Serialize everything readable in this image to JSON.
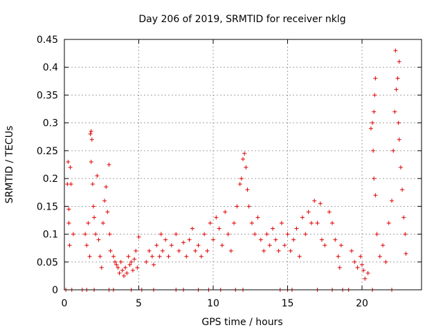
{
  "chart_data": {
    "type": "scatter",
    "title": "Day 206 of 2019, SRMTID for receiver nklg",
    "xlabel": "GPS time / hours",
    "ylabel": "SRMTID / TECUs",
    "xlim": [
      0,
      24
    ],
    "ylim": [
      0,
      0.45
    ],
    "grid": true,
    "marker": "+",
    "color": "#e00000",
    "x_ticks": [
      {
        "value": 0,
        "label": "0"
      },
      {
        "value": 5,
        "label": "5"
      },
      {
        "value": 10,
        "label": "10"
      },
      {
        "value": 15,
        "label": "15"
      },
      {
        "value": 20,
        "label": "20"
      }
    ],
    "y_ticks": [
      {
        "value": 0,
        "label": "0"
      },
      {
        "value": 0.05,
        "label": "0.05"
      },
      {
        "value": 0.1,
        "label": "0.1"
      },
      {
        "value": 0.15,
        "label": "0.15"
      },
      {
        "value": 0.2,
        "label": "0.2"
      },
      {
        "value": 0.25,
        "label": "0.25"
      },
      {
        "value": 0.3,
        "label": "0.3"
      },
      {
        "value": 0.35,
        "label": "0.35"
      },
      {
        "value": 0.4,
        "label": "0.4"
      },
      {
        "value": 0.45,
        "label": "0.45"
      }
    ],
    "series": [
      {
        "name": "SRMTID",
        "points": [
          [
            0.2,
            0.19
          ],
          [
            0.25,
            0.23
          ],
          [
            0.3,
            0.145
          ],
          [
            0.3,
            0.12
          ],
          [
            0.35,
            0.08
          ],
          [
            0.4,
            0.22
          ],
          [
            0.45,
            0.19
          ],
          [
            0.6,
            0.1
          ],
          [
            1.4,
            0.1
          ],
          [
            1.5,
            0.08
          ],
          [
            1.6,
            0.12
          ],
          [
            1.7,
            0.06
          ],
          [
            1.75,
            0.28
          ],
          [
            1.8,
            0.285
          ],
          [
            1.85,
            0.27
          ],
          [
            1.8,
            0.23
          ],
          [
            1.9,
            0.19
          ],
          [
            1.95,
            0.15
          ],
          [
            2.0,
            0.13
          ],
          [
            2.1,
            0.1
          ],
          [
            2.2,
            0.205
          ],
          [
            2.3,
            0.09
          ],
          [
            2.4,
            0.06
          ],
          [
            2.5,
            0.04
          ],
          [
            2.6,
            0.12
          ],
          [
            2.7,
            0.16
          ],
          [
            2.8,
            0.185
          ],
          [
            2.9,
            0.14
          ],
          [
            3.0,
            0.225
          ],
          [
            3.05,
            0.1
          ],
          [
            3.1,
            0.07
          ],
          [
            3.3,
            0.06
          ],
          [
            3.4,
            0.05
          ],
          [
            3.5,
            0.045
          ],
          [
            3.6,
            0.04
          ],
          [
            3.7,
            0.03
          ],
          [
            3.8,
            0.05
          ],
          [
            3.9,
            0.035
          ],
          [
            4.0,
            0.025
          ],
          [
            4.1,
            0.04
          ],
          [
            4.2,
            0.03
          ],
          [
            4.3,
            0.06
          ],
          [
            4.4,
            0.045
          ],
          [
            4.5,
            0.05
          ],
          [
            4.6,
            0.035
          ],
          [
            4.7,
            0.055
          ],
          [
            4.8,
            0.07
          ],
          [
            4.9,
            0.04
          ],
          [
            5.0,
            0.095
          ],
          [
            5.5,
            0.05
          ],
          [
            5.7,
            0.07
          ],
          [
            5.9,
            0.06
          ],
          [
            6.0,
            0.045
          ],
          [
            6.2,
            0.08
          ],
          [
            6.4,
            0.06
          ],
          [
            6.5,
            0.1
          ],
          [
            6.6,
            0.07
          ],
          [
            6.8,
            0.09
          ],
          [
            7.0,
            0.06
          ],
          [
            7.2,
            0.08
          ],
          [
            7.5,
            0.1
          ],
          [
            7.7,
            0.07
          ],
          [
            8.0,
            0.085
          ],
          [
            8.2,
            0.06
          ],
          [
            8.4,
            0.09
          ],
          [
            8.6,
            0.11
          ],
          [
            8.8,
            0.07
          ],
          [
            9.0,
            0.08
          ],
          [
            9.2,
            0.06
          ],
          [
            9.4,
            0.1
          ],
          [
            9.6,
            0.07
          ],
          [
            9.8,
            0.12
          ],
          [
            10.0,
            0.09
          ],
          [
            10.2,
            0.13
          ],
          [
            10.4,
            0.11
          ],
          [
            10.6,
            0.08
          ],
          [
            10.8,
            0.14
          ],
          [
            11.0,
            0.1
          ],
          [
            11.2,
            0.07
          ],
          [
            11.4,
            0.12
          ],
          [
            11.6,
            0.15
          ],
          [
            11.8,
            0.19
          ],
          [
            11.9,
            0.2
          ],
          [
            12.0,
            0.235
          ],
          [
            12.1,
            0.245
          ],
          [
            12.2,
            0.22
          ],
          [
            12.3,
            0.18
          ],
          [
            12.4,
            0.15
          ],
          [
            12.6,
            0.12
          ],
          [
            12.8,
            0.1
          ],
          [
            13.0,
            0.13
          ],
          [
            13.2,
            0.09
          ],
          [
            13.4,
            0.07
          ],
          [
            13.6,
            0.1
          ],
          [
            13.8,
            0.08
          ],
          [
            14.0,
            0.11
          ],
          [
            14.2,
            0.09
          ],
          [
            14.4,
            0.07
          ],
          [
            14.6,
            0.12
          ],
          [
            14.8,
            0.08
          ],
          [
            15.0,
            0.1
          ],
          [
            15.2,
            0.07
          ],
          [
            15.4,
            0.09
          ],
          [
            15.6,
            0.11
          ],
          [
            15.8,
            0.06
          ],
          [
            16.0,
            0.13
          ],
          [
            16.2,
            0.1
          ],
          [
            16.4,
            0.14
          ],
          [
            16.6,
            0.12
          ],
          [
            16.8,
            0.16
          ],
          [
            17.0,
            0.12
          ],
          [
            17.2,
            0.155
          ],
          [
            17.3,
            0.09
          ],
          [
            17.5,
            0.08
          ],
          [
            17.8,
            0.14
          ],
          [
            18.0,
            0.12
          ],
          [
            18.2,
            0.09
          ],
          [
            18.4,
            0.06
          ],
          [
            18.5,
            0.04
          ],
          [
            18.6,
            0.08
          ],
          [
            19.3,
            0.07
          ],
          [
            19.5,
            0.05
          ],
          [
            19.7,
            0.04
          ],
          [
            19.9,
            0.06
          ],
          [
            20.0,
            0.045
          ],
          [
            20.1,
            0.035
          ],
          [
            20.2,
            0.02
          ],
          [
            20.4,
            0.03
          ],
          [
            20.6,
            0.29
          ],
          [
            20.7,
            0.3
          ],
          [
            20.8,
            0.32
          ],
          [
            20.85,
            0.35
          ],
          [
            20.9,
            0.38
          ],
          [
            20.75,
            0.25
          ],
          [
            20.8,
            0.2
          ],
          [
            20.9,
            0.17
          ],
          [
            21.0,
            0.1
          ],
          [
            21.2,
            0.06
          ],
          [
            21.4,
            0.08
          ],
          [
            21.6,
            0.05
          ],
          [
            21.8,
            0.12
          ],
          [
            22.0,
            0.16
          ],
          [
            22.1,
            0.25
          ],
          [
            22.2,
            0.32
          ],
          [
            22.25,
            0.43
          ],
          [
            22.3,
            0.36
          ],
          [
            22.4,
            0.38
          ],
          [
            22.5,
            0.41
          ],
          [
            22.45,
            0.3
          ],
          [
            22.5,
            0.27
          ],
          [
            22.6,
            0.22
          ],
          [
            22.7,
            0.18
          ],
          [
            22.8,
            0.13
          ],
          [
            22.9,
            0.1
          ],
          [
            22.95,
            0.065
          ],
          [
            0.1,
            0.0
          ],
          [
            0.5,
            0.0
          ],
          [
            1.2,
            0.0
          ],
          [
            1.5,
            0.0
          ],
          [
            2.0,
            0.0
          ],
          [
            3.0,
            0.0
          ],
          [
            3.3,
            0.0
          ],
          [
            4.5,
            0.0
          ],
          [
            5.2,
            0.0
          ],
          [
            6.0,
            0.0
          ],
          [
            7.5,
            0.0
          ],
          [
            8.0,
            0.0
          ],
          [
            9.0,
            0.0
          ],
          [
            9.7,
            0.0
          ],
          [
            10.5,
            0.0
          ],
          [
            11.5,
            0.0
          ],
          [
            12.0,
            0.0
          ],
          [
            14.5,
            0.0
          ],
          [
            15.0,
            0.0
          ],
          [
            15.3,
            0.0
          ],
          [
            17.0,
            0.0
          ],
          [
            18.0,
            0.0
          ],
          [
            18.7,
            0.0
          ],
          [
            19.1,
            0.0
          ],
          [
            20.7,
            0.0
          ],
          [
            22.0,
            0.0
          ]
        ]
      }
    ]
  }
}
